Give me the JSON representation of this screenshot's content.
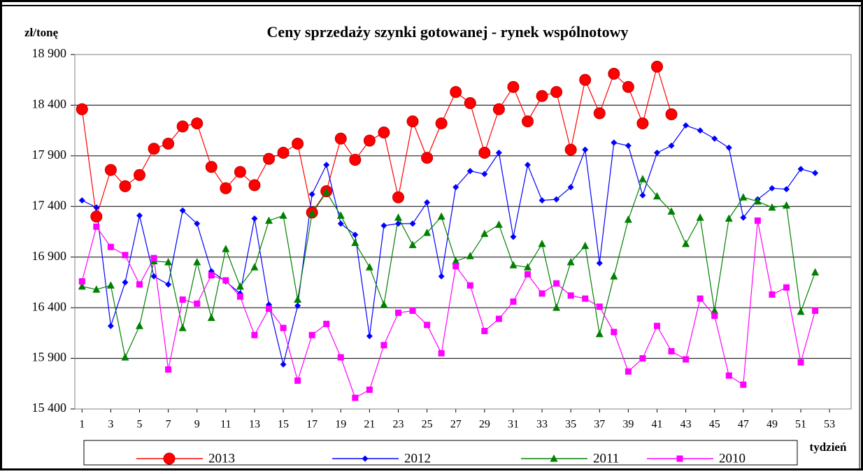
{
  "chart_data": {
    "type": "line",
    "title": "Ceny sprzedaży szynki gotowanej -  rynek wspólnotowy",
    "y_label": "zł/tonę",
    "x_label": "tydzień",
    "x": [
      1,
      2,
      3,
      4,
      5,
      6,
      7,
      8,
      9,
      10,
      11,
      12,
      13,
      14,
      15,
      16,
      17,
      18,
      19,
      20,
      21,
      22,
      23,
      24,
      25,
      26,
      27,
      28,
      29,
      30,
      31,
      32,
      33,
      34,
      35,
      36,
      37,
      38,
      39,
      40,
      41,
      42,
      43,
      44,
      45,
      46,
      47,
      48,
      49,
      50,
      51,
      52
    ],
    "xlim": [
      0.5,
      54.5
    ],
    "xticks": [
      1,
      3,
      5,
      7,
      9,
      11,
      13,
      15,
      17,
      19,
      21,
      23,
      25,
      27,
      29,
      31,
      33,
      35,
      37,
      39,
      41,
      43,
      45,
      47,
      49,
      51,
      53
    ],
    "ylim": [
      15400,
      18900
    ],
    "yticks": [
      {
        "value": 15400,
        "label": "15 400"
      },
      {
        "value": 15900,
        "label": "15 900"
      },
      {
        "value": 16400,
        "label": "16 400"
      },
      {
        "value": 16900,
        "label": "16 900"
      },
      {
        "value": 17400,
        "label": "17 400"
      },
      {
        "value": 17900,
        "label": "17 900"
      },
      {
        "value": 18400,
        "label": "18 400"
      },
      {
        "value": 18900,
        "label": "18 900"
      }
    ],
    "grid": true,
    "legend": "bottom",
    "series": [
      {
        "name": "2013",
        "color": "#ff0000",
        "marker": "circle",
        "values": [
          18360,
          17300,
          17760,
          17600,
          17710,
          17970,
          18020,
          18190,
          18220,
          17790,
          17580,
          17740,
          17610,
          17870,
          17930,
          18020,
          17340,
          17550,
          18070,
          17860,
          18050,
          18130,
          17490,
          18240,
          17880,
          18220,
          18530,
          18420,
          17930,
          18360,
          18580,
          18240,
          18490,
          18530,
          17960,
          18650,
          18320,
          18710,
          18580,
          18220,
          18780,
          18310,
          null,
          null,
          null,
          null,
          null,
          null,
          null,
          null,
          null,
          null
        ]
      },
      {
        "name": "2012",
        "color": "#0000ff",
        "marker": "diamond",
        "values": [
          17460,
          17390,
          16220,
          16650,
          17310,
          16710,
          16630,
          17360,
          17230,
          16760,
          16660,
          16540,
          17280,
          16430,
          15840,
          16420,
          17520,
          17810,
          17230,
          17120,
          16120,
          17210,
          17230,
          17230,
          17440,
          16710,
          17590,
          17750,
          17720,
          17930,
          17100,
          17810,
          17460,
          17470,
          17590,
          17960,
          16840,
          18030,
          18000,
          17510,
          17930,
          18000,
          18200,
          18150,
          18070,
          17980,
          17290,
          17470,
          17580,
          17570,
          17770,
          17730
        ]
      },
      {
        "name": "2011",
        "color": "#008000",
        "marker": "triangle",
        "values": [
          16610,
          16580,
          16620,
          15910,
          16220,
          16860,
          16850,
          16200,
          16850,
          16300,
          16980,
          16610,
          16800,
          17260,
          17310,
          16480,
          17330,
          17540,
          17310,
          17040,
          16800,
          16430,
          17290,
          17020,
          17140,
          17300,
          16860,
          16910,
          17130,
          17220,
          16820,
          16800,
          17030,
          16400,
          16850,
          17010,
          16140,
          16710,
          17270,
          17670,
          17500,
          17350,
          17030,
          17290,
          16370,
          17280,
          17490,
          17450,
          17390,
          17410,
          16360,
          16750
        ]
      },
      {
        "name": "2010",
        "color": "#ff00ff",
        "marker": "square",
        "values": [
          16660,
          17200,
          17000,
          16920,
          16630,
          16890,
          15790,
          16480,
          16440,
          16720,
          16670,
          16510,
          16130,
          16390,
          16200,
          15680,
          16130,
          16240,
          15910,
          15510,
          15590,
          16030,
          16350,
          16370,
          16230,
          15950,
          16810,
          16620,
          16170,
          16290,
          16460,
          16730,
          16540,
          16640,
          16520,
          16490,
          16410,
          16160,
          15770,
          15900,
          16220,
          15970,
          15890,
          16490,
          16320,
          15730,
          15640,
          17260,
          16530,
          16600,
          15860,
          16370
        ]
      }
    ]
  }
}
